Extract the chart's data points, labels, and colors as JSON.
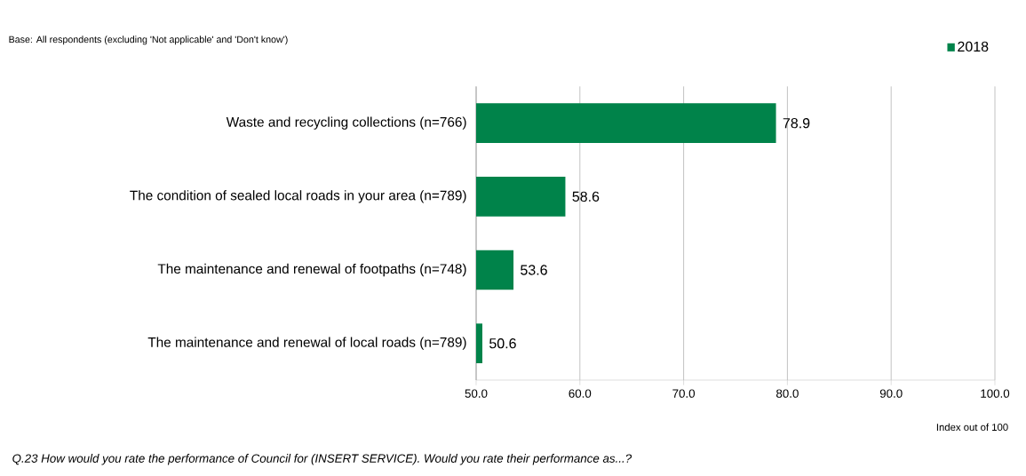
{
  "chart_data": {
    "type": "bar",
    "orientation": "horizontal",
    "categories": [
      "Waste and recycling collections (n=766)",
      "The condition of sealed local roads in your area (n=789)",
      "The maintenance and renewal of footpaths (n=748)",
      "The maintenance and renewal of local roads (n=789)"
    ],
    "series": [
      {
        "name": "2018",
        "color": "#00834a",
        "values": [
          78.9,
          58.6,
          53.6,
          50.6
        ]
      }
    ],
    "xlim": [
      50,
      100
    ],
    "xticks": [
      {
        "value": 50,
        "label": "50.0"
      },
      {
        "value": 60,
        "label": "60.0"
      },
      {
        "value": 70,
        "label": "70.0"
      },
      {
        "value": 80,
        "label": "80.0"
      },
      {
        "value": 90,
        "label": "90.0"
      },
      {
        "value": 100,
        "label": "100.0"
      }
    ],
    "xlabel": "Index out of 100",
    "grid": "x",
    "legend": "top right",
    "data_labels": true,
    "annotations": [
      "Base: All respondents (excluding 'Not applicable' and 'Don't know')",
      "Q.23 How would you rate the performance of Council for (INSERT SERVICE).  Would you rate their performance as...?"
    ]
  }
}
